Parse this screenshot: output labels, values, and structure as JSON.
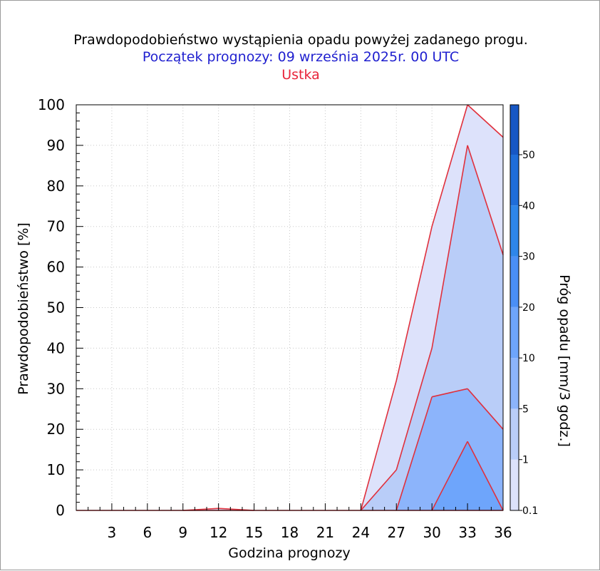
{
  "chart_data": {
    "type": "area",
    "title": "Prawdopodobieństwo wystąpienia opadu powyżej zadanego progu.",
    "subtitle": "Początek prognozy: 09 września 2025r. 00 UTC",
    "location": "Ustka",
    "xlabel": "Godzina prognozy",
    "ylabel": "Prawdopodobieństwo [%]",
    "colorbar_label": "Próg opadu [mm/3 godz.]",
    "xlim": [
      0,
      36
    ],
    "ylim": [
      0,
      100
    ],
    "xticks": [
      3,
      6,
      9,
      12,
      15,
      18,
      21,
      24,
      27,
      30,
      33,
      36
    ],
    "yticks": [
      0,
      10,
      20,
      30,
      40,
      50,
      60,
      70,
      80,
      90,
      100
    ],
    "x": [
      0,
      3,
      6,
      9,
      12,
      15,
      18,
      21,
      24,
      27,
      30,
      33,
      36
    ],
    "series": [
      {
        "name": "0.1",
        "color": "#dde2fb",
        "values": [
          0,
          0,
          0,
          0,
          0.5,
          0,
          0,
          0,
          0,
          32,
          70,
          100,
          92
        ]
      },
      {
        "name": "1",
        "color": "#b9cdf8",
        "values": [
          0,
          0,
          0,
          0,
          0,
          0,
          0,
          0,
          0,
          10,
          40,
          90,
          63
        ]
      },
      {
        "name": "5",
        "color": "#8cb4fb",
        "values": [
          0,
          0,
          0,
          0,
          0,
          0,
          0,
          0,
          0,
          0,
          28,
          30,
          20
        ]
      },
      {
        "name": "10",
        "color": "#6ea5fb",
        "values": [
          0,
          0,
          0,
          0,
          0,
          0,
          0,
          0,
          0,
          0,
          0,
          17,
          0
        ]
      }
    ],
    "line_color": "#e0303c",
    "colorbar": {
      "ticks": [
        "0.1",
        "1",
        "5",
        "10",
        "20",
        "30",
        "40",
        "50"
      ],
      "colors": [
        "#dde2fb",
        "#b9cdf8",
        "#8cb4fb",
        "#6ea5fb",
        "#4a8ff6",
        "#2e86ea",
        "#1f6dd9",
        "#1757c4",
        "#0f3e9e"
      ]
    },
    "grid": true
  }
}
